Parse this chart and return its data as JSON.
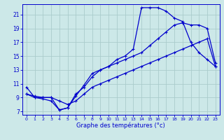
{
  "xlabel": "Graphe des températures (°c)",
  "bg_color": "#cce8e8",
  "grid_color": "#aacccc",
  "line_color": "#0000cc",
  "xlim": [
    -0.5,
    23.5
  ],
  "ylim": [
    6.5,
    22.5
  ],
  "xticks": [
    0,
    1,
    2,
    3,
    4,
    5,
    6,
    7,
    8,
    9,
    10,
    11,
    12,
    13,
    14,
    15,
    16,
    17,
    18,
    19,
    20,
    21,
    22,
    23
  ],
  "yticks": [
    7,
    9,
    11,
    13,
    15,
    17,
    19,
    21
  ],
  "line1_x": [
    0,
    1,
    2,
    3,
    4,
    5,
    6,
    7,
    8,
    9,
    10,
    11,
    12,
    13,
    14,
    15,
    16,
    17,
    18,
    19,
    20,
    21,
    22,
    23
  ],
  "line1_y": [
    10.5,
    9.0,
    8.8,
    8.5,
    7.2,
    7.5,
    9.2,
    10.8,
    12.5,
    13.0,
    13.5,
    14.0,
    14.5,
    15.0,
    15.5,
    16.5,
    17.5,
    18.5,
    19.5,
    19.8,
    19.5,
    19.5,
    19.0,
    14.0
  ],
  "line2_x": [
    0,
    1,
    2,
    3,
    4,
    5,
    6,
    7,
    8,
    9,
    10,
    11,
    12,
    13,
    14,
    15,
    16,
    17,
    18,
    19,
    20,
    21,
    22,
    23
  ],
  "line2_y": [
    9.5,
    9.2,
    9.0,
    9.0,
    8.5,
    8.0,
    8.5,
    9.5,
    10.5,
    11.0,
    11.5,
    12.0,
    12.5,
    13.0,
    13.5,
    14.0,
    14.5,
    15.0,
    15.5,
    16.0,
    16.5,
    17.0,
    17.5,
    13.5
  ],
  "line3_x": [
    0,
    1,
    2,
    3,
    4,
    5,
    6,
    7,
    8,
    9,
    10,
    11,
    12,
    13,
    14,
    15,
    16,
    17,
    18,
    19,
    20,
    21,
    22,
    23
  ],
  "line3_y": [
    9.5,
    9.0,
    9.0,
    9.0,
    7.2,
    7.5,
    9.5,
    10.5,
    12.0,
    13.0,
    13.5,
    14.5,
    15.0,
    16.0,
    22.0,
    22.0,
    22.0,
    21.5,
    20.5,
    20.0,
    17.0,
    15.5,
    14.5,
    13.5
  ]
}
